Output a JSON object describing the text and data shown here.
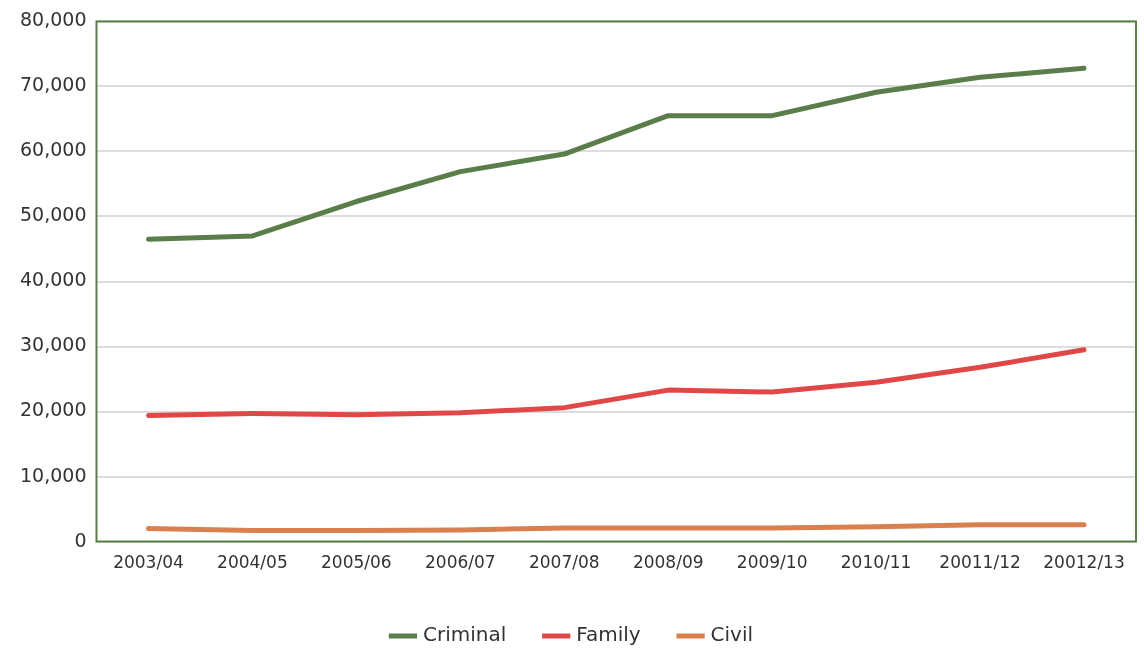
{
  "chart_data": {
    "type": "line",
    "categories": [
      "2003/04",
      "2004/05",
      "2005/06",
      "2006/07",
      "2007/08",
      "2008/09",
      "2009/10",
      "2010/11",
      "20011/12",
      "20012/13"
    ],
    "series": [
      {
        "name": "Criminal",
        "color": "#5a7d4a",
        "values": [
          46500,
          47000,
          52300,
          56900,
          59600,
          65500,
          65500,
          69100,
          71400,
          72800
        ]
      },
      {
        "name": "Family",
        "color": "#e04848",
        "values": [
          19400,
          19700,
          19500,
          19800,
          20600,
          23300,
          23000,
          24500,
          26800,
          29500
        ]
      },
      {
        "name": "Civil",
        "color": "#d9804e",
        "values": [
          2000,
          1700,
          1700,
          1800,
          2100,
          2100,
          2100,
          2300,
          2600,
          2600
        ]
      }
    ],
    "ylim": [
      0,
      80000
    ],
    "yticks": [
      {
        "value": 0,
        "label": "0"
      },
      {
        "value": 10000,
        "label": "10,000"
      },
      {
        "value": 20000,
        "label": "20,000"
      },
      {
        "value": 30000,
        "label": "30,000"
      },
      {
        "value": 40000,
        "label": "40,000"
      },
      {
        "value": 50000,
        "label": "50,000"
      },
      {
        "value": 60000,
        "label": "60,000"
      },
      {
        "value": 70000,
        "label": "70,000"
      },
      {
        "value": 80000,
        "label": "80,000"
      }
    ],
    "grid": "y",
    "legend": "bottom",
    "marker": "none",
    "line_style": "solid"
  }
}
